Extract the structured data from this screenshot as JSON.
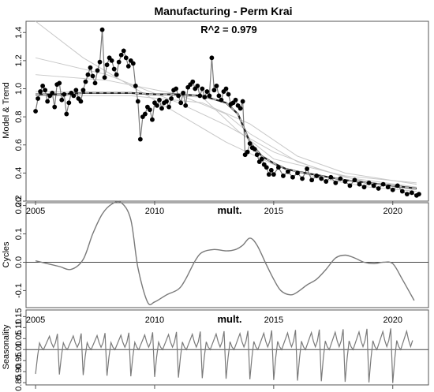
{
  "title": "Manufacturing - Perm Krai",
  "r2_label": "R^2 = 0.979",
  "x_ticks": [
    "2005",
    "2010",
    "2015",
    "2020"
  ],
  "chart_data": [
    {
      "type": "scatter",
      "name": "model-trend",
      "ylabel": "Model & Trend",
      "xlim": [
        2004.6,
        2021.5
      ],
      "ylim": [
        0.2,
        1.48
      ],
      "yticks": [
        0.2,
        0.4,
        0.6,
        0.8,
        1.0,
        1.2,
        1.4
      ],
      "ytick_labels": [
        "0.2",
        "0.4",
        "0.6",
        "0.8",
        "1.0",
        "1.2",
        "1.4"
      ],
      "points": [
        [
          2005.0,
          0.84
        ],
        [
          2005.1,
          0.93
        ],
        [
          2005.2,
          0.98
        ],
        [
          2005.3,
          1.02
        ],
        [
          2005.4,
          0.99
        ],
        [
          2005.5,
          0.91
        ],
        [
          2005.6,
          0.95
        ],
        [
          2005.7,
          0.97
        ],
        [
          2005.8,
          0.87
        ],
        [
          2005.9,
          1.03
        ],
        [
          2006.0,
          1.04
        ],
        [
          2006.1,
          0.92
        ],
        [
          2006.2,
          0.96
        ],
        [
          2006.3,
          0.82
        ],
        [
          2006.4,
          0.9
        ],
        [
          2006.5,
          0.97
        ],
        [
          2006.6,
          0.95
        ],
        [
          2006.7,
          0.99
        ],
        [
          2006.8,
          0.93
        ],
        [
          2006.9,
          0.91
        ],
        [
          2007.0,
          0.99
        ],
        [
          2007.1,
          1.05
        ],
        [
          2007.2,
          1.1
        ],
        [
          2007.3,
          1.15
        ],
        [
          2007.4,
          1.09
        ],
        [
          2007.5,
          1.04
        ],
        [
          2007.6,
          1.13
        ],
        [
          2007.7,
          1.19
        ],
        [
          2007.8,
          1.42
        ],
        [
          2007.9,
          1.08
        ],
        [
          2008.0,
          1.17
        ],
        [
          2008.1,
          1.22
        ],
        [
          2008.2,
          1.2
        ],
        [
          2008.3,
          1.14
        ],
        [
          2008.4,
          1.1
        ],
        [
          2008.5,
          1.19
        ],
        [
          2008.6,
          1.24
        ],
        [
          2008.7,
          1.27
        ],
        [
          2008.8,
          1.22
        ],
        [
          2008.9,
          1.16
        ],
        [
          2009.0,
          1.2
        ],
        [
          2009.1,
          1.18
        ],
        [
          2009.2,
          1.02
        ],
        [
          2009.3,
          0.91
        ],
        [
          2009.4,
          0.64
        ],
        [
          2009.5,
          0.8
        ],
        [
          2009.6,
          0.82
        ],
        [
          2009.7,
          0.87
        ],
        [
          2009.8,
          0.85
        ],
        [
          2009.9,
          0.78
        ],
        [
          2010.0,
          0.9
        ],
        [
          2010.1,
          0.88
        ],
        [
          2010.2,
          0.92
        ],
        [
          2010.3,
          0.86
        ],
        [
          2010.4,
          0.9
        ],
        [
          2010.5,
          0.91
        ],
        [
          2010.6,
          0.87
        ],
        [
          2010.7,
          0.93
        ],
        [
          2010.8,
          0.99
        ],
        [
          2010.9,
          1.0
        ],
        [
          2011.0,
          0.95
        ],
        [
          2011.1,
          0.9
        ],
        [
          2011.2,
          0.97
        ],
        [
          2011.3,
          0.88
        ],
        [
          2011.4,
          1.01
        ],
        [
          2011.5,
          1.03
        ],
        [
          2011.6,
          1.05
        ],
        [
          2011.7,
          1.0
        ],
        [
          2011.8,
          1.02
        ],
        [
          2011.9,
          0.95
        ],
        [
          2012.0,
          1.0
        ],
        [
          2012.1,
          0.94
        ],
        [
          2012.2,
          0.98
        ],
        [
          2012.3,
          0.95
        ],
        [
          2012.4,
          1.22
        ],
        [
          2012.5,
          0.99
        ],
        [
          2012.6,
          1.02
        ],
        [
          2012.7,
          0.95
        ],
        [
          2012.8,
          0.92
        ],
        [
          2012.9,
          0.98
        ],
        [
          2013.0,
          1.0
        ],
        [
          2013.1,
          0.96
        ],
        [
          2013.2,
          0.89
        ],
        [
          2013.3,
          0.9
        ],
        [
          2013.4,
          0.92
        ],
        [
          2013.5,
          0.88
        ],
        [
          2013.6,
          0.86
        ],
        [
          2013.7,
          0.91
        ],
        [
          2013.8,
          0.53
        ],
        [
          2013.9,
          0.55
        ],
        [
          2014.0,
          0.61
        ],
        [
          2014.1,
          0.58
        ],
        [
          2014.2,
          0.57
        ],
        [
          2014.3,
          0.53
        ],
        [
          2014.4,
          0.48
        ],
        [
          2014.5,
          0.5
        ],
        [
          2014.6,
          0.46
        ],
        [
          2014.7,
          0.44
        ],
        [
          2014.8,
          0.39
        ],
        [
          2014.9,
          0.42
        ],
        [
          2015.0,
          0.39
        ],
        [
          2015.2,
          0.44
        ],
        [
          2015.4,
          0.38
        ],
        [
          2015.6,
          0.41
        ],
        [
          2015.8,
          0.37
        ],
        [
          2016.0,
          0.4
        ],
        [
          2016.2,
          0.36
        ],
        [
          2016.4,
          0.43
        ],
        [
          2016.6,
          0.35
        ],
        [
          2016.8,
          0.38
        ],
        [
          2017.0,
          0.36
        ],
        [
          2017.2,
          0.34
        ],
        [
          2017.4,
          0.37
        ],
        [
          2017.6,
          0.33
        ],
        [
          2017.8,
          0.36
        ],
        [
          2018.0,
          0.34
        ],
        [
          2018.2,
          0.31
        ],
        [
          2018.4,
          0.35
        ],
        [
          2018.6,
          0.32
        ],
        [
          2018.8,
          0.3
        ],
        [
          2019.0,
          0.33
        ],
        [
          2019.2,
          0.31
        ],
        [
          2019.4,
          0.29
        ],
        [
          2019.6,
          0.32
        ],
        [
          2019.8,
          0.3
        ],
        [
          2020.0,
          0.28
        ],
        [
          2020.2,
          0.31
        ],
        [
          2020.4,
          0.27
        ],
        [
          2020.6,
          0.25
        ],
        [
          2020.8,
          0.26
        ],
        [
          2021.0,
          0.24
        ],
        [
          2021.1,
          0.25
        ]
      ],
      "trend": [
        [
          2005.0,
          0.96
        ],
        [
          2006.0,
          0.96
        ],
        [
          2007.0,
          0.97
        ],
        [
          2008.0,
          0.97
        ],
        [
          2009.0,
          0.97
        ],
        [
          2010.0,
          0.96
        ],
        [
          2011.0,
          0.96
        ],
        [
          2012.0,
          0.95
        ],
        [
          2013.0,
          0.9
        ],
        [
          2013.5,
          0.82
        ],
        [
          2014.0,
          0.62
        ],
        [
          2014.5,
          0.52
        ],
        [
          2015.0,
          0.47
        ],
        [
          2015.5,
          0.43
        ],
        [
          2016.0,
          0.41
        ],
        [
          2017.0,
          0.38
        ],
        [
          2018.0,
          0.35
        ],
        [
          2019.0,
          0.33
        ],
        [
          2020.0,
          0.31
        ],
        [
          2021.0,
          0.29
        ]
      ]
    },
    {
      "type": "line",
      "name": "cycles",
      "ylabel": "Cycles",
      "title": "mult.",
      "xlim": [
        2004.6,
        2021.5
      ],
      "ylim": [
        -0.16,
        0.21
      ],
      "yticks": [
        -0.1,
        0.0,
        0.1,
        0.2
      ],
      "ytick_labels": [
        "-0.1",
        "0.0",
        "0.1",
        "0.20"
      ],
      "baseline": 0.0,
      "x": [
        2005.0,
        2005.5,
        2006.0,
        2006.5,
        2007.0,
        2007.4,
        2007.8,
        2008.2,
        2008.6,
        2009.0,
        2009.3,
        2009.7,
        2010.0,
        2010.5,
        2011.0,
        2011.3,
        2011.7,
        2012.0,
        2012.5,
        2013.0,
        2013.4,
        2013.7,
        2014.0,
        2014.3,
        2014.7,
        2015.0,
        2015.3,
        2015.7,
        2016.0,
        2016.4,
        2016.8,
        2017.2,
        2017.6,
        2018.0,
        2018.4,
        2018.8,
        2019.2,
        2019.6,
        2020.0,
        2020.4,
        2020.9
      ],
      "y": [
        0.005,
        -0.005,
        -0.015,
        -0.025,
        0.01,
        0.1,
        0.17,
        0.205,
        0.21,
        0.15,
        -0.02,
        -0.14,
        -0.14,
        -0.115,
        -0.095,
        -0.06,
        0.005,
        0.035,
        0.045,
        0.04,
        0.045,
        0.06,
        0.085,
        0.06,
        -0.01,
        -0.06,
        -0.1,
        -0.115,
        -0.105,
        -0.08,
        -0.06,
        -0.025,
        0.015,
        0.025,
        0.015,
        0.0,
        -0.005,
        0.0,
        -0.005,
        -0.06,
        -0.135
      ]
    },
    {
      "type": "line",
      "name": "seasonality",
      "ylabel": "Seasonality",
      "title": "mult.",
      "xlim": [
        2004.6,
        2021.5
      ],
      "ylim": [
        0.84,
        1.18
      ],
      "yticks": [
        0.85,
        0.9,
        0.95,
        1.0,
        1.05,
        1.1,
        1.15
      ],
      "ytick_labels": [
        "0.85",
        "0.90",
        "0.95",
        "1.00",
        "1.05",
        "1.10",
        "1.15"
      ],
      "baseline": 1.0,
      "start_year": 2005.0,
      "end_year": 2020.9,
      "season_base": [
        0.89,
        0.97,
        1.03,
        1.01,
        1.0,
        1.02,
        1.04,
        1.06,
        1.03,
        1.01,
        1.03,
        1.07
      ],
      "season_growth": 0.4
    }
  ]
}
